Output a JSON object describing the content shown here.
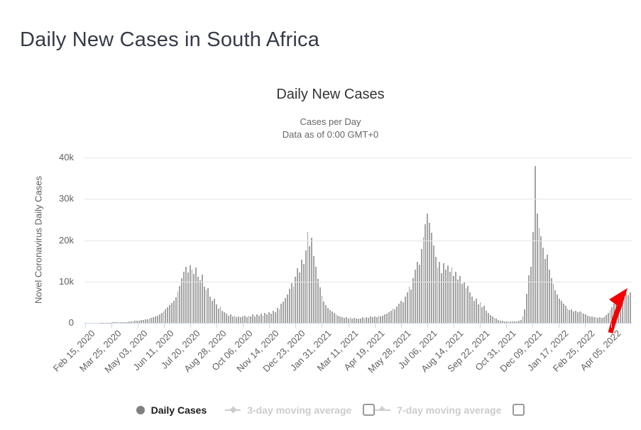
{
  "page": {
    "title": "Daily New Cases in South Africa"
  },
  "chart": {
    "title": "Daily New Cases",
    "subtitle_line1": "Cases per Day",
    "subtitle_line2": "Data as of 0:00 GMT+0",
    "y_axis_title": "Novel Coronavirus Daily Cases"
  },
  "legend": {
    "daily_cases_label": "Daily Cases",
    "ma3_label": "3-day moving average",
    "ma7_label": "7-day moving average"
  },
  "colors": {
    "bar": "#a3a3a3",
    "gridline": "#e6e6e6",
    "axis_line": "#ccd6eb",
    "axis_text": "#606060",
    "heading": "#353b48",
    "legend_daily_marker": "#7f7f7f",
    "legend_muted": "#cccccc",
    "annotation_arrow": "#f40000"
  },
  "chart_data": {
    "type": "bar",
    "title": "Daily New Cases",
    "subtitle": [
      "Cases per Day",
      "Data as of 0:00 GMT+0"
    ],
    "series_name": "Daily Cases",
    "ylabel": "Novel Coronavirus Daily Cases",
    "ylim": [
      0,
      40000
    ],
    "ytick_labels": [
      "0",
      "10k",
      "20k",
      "30k",
      "40k"
    ],
    "grid": true,
    "legend_position": "bottom",
    "x_start_date": "Feb 15, 2020",
    "x_end_date": "May 04, 2022",
    "point_interval_days": 3,
    "x_tick_labels": [
      "Feb 15, 2020",
      "Mar 25, 2020",
      "May 03, 2020",
      "Jun 11, 2020",
      "Jul 20, 2020",
      "Aug 28, 2020",
      "Oct 06, 2020",
      "Nov 14, 2020",
      "Dec 23, 2020",
      "Jan 31, 2021",
      "Mar 11, 2021",
      "Apr 19, 2021",
      "May 28, 2021",
      "Jul 06, 2021",
      "Aug 14, 2021",
      "Sep 22, 2021",
      "Oct 31, 2021",
      "Dec 09, 2021",
      "Jan 17, 2022",
      "Feb 25, 2022",
      "Apr 05, 2022"
    ],
    "values": [
      0,
      0,
      0,
      0,
      0,
      2,
      5,
      10,
      20,
      35,
      50,
      60,
      70,
      80,
      90,
      100,
      120,
      140,
      160,
      190,
      220,
      260,
      300,
      350,
      400,
      450,
      500,
      570,
      640,
      720,
      800,
      900,
      1000,
      1150,
      1300,
      1500,
      1750,
      2050,
      2400,
      2800,
      3300,
      3800,
      4300,
      4800,
      5400,
      6200,
      7500,
      9000,
      10800,
      12300,
      13500,
      12200,
      13900,
      12800,
      11800,
      13400,
      11200,
      10300,
      11600,
      8800,
      7900,
      8400,
      6400,
      5400,
      5900,
      4400,
      3400,
      3900,
      2900,
      2600,
      2200,
      1800,
      2000,
      1500,
      1700,
      1400,
      1600,
      1300,
      1500,
      1700,
      1400,
      1800,
      1500,
      2000,
      1600,
      2100,
      1700,
      2200,
      1800,
      2400,
      2000,
      2600,
      2200,
      3000,
      2600,
      3600,
      3200,
      4600,
      5200,
      6000,
      6800,
      8200,
      9600,
      8800,
      11200,
      13200,
      12200,
      15200,
      14200,
      17500,
      21900,
      18500,
      20600,
      16200,
      13600,
      10600,
      8600,
      6600,
      5200,
      4300,
      3600,
      3100,
      2800,
      2400,
      2100,
      1800,
      1500,
      1300,
      1200,
      1400,
      1100,
      1300,
      1000,
      1200,
      950,
      1100,
      1000,
      1300,
      1100,
      1400,
      1200,
      1500,
      1300,
      1600,
      1400,
      1700,
      1500,
      1800,
      2000,
      2300,
      2600,
      3000,
      3400,
      3200,
      4000,
      4600,
      5400,
      5000,
      6400,
      7400,
      8800,
      8000,
      10800,
      12800,
      14800,
      14000,
      17800,
      20800,
      23800,
      26500,
      24200,
      21800,
      18800,
      16000,
      13400,
      14800,
      12000,
      14400,
      12800,
      13900,
      12400,
      13400,
      11400,
      12400,
      10400,
      11400,
      9400,
      9900,
      8400,
      8900,
      7400,
      6400,
      5400,
      5900,
      4400,
      4900,
      3700,
      4100,
      2900,
      2400,
      1900,
      1600,
      1250,
      950,
      750,
      560,
      460,
      380,
      330,
      290,
      290,
      340,
      300,
      390,
      480,
      700,
      1500,
      3200,
      7000,
      11500,
      13500,
      22000,
      37900,
      26500,
      23000,
      21000,
      18200,
      15400,
      16400,
      12800,
      10800,
      9400,
      7900,
      6900,
      5900,
      5400,
      4700,
      4100,
      3500,
      3100,
      3300,
      2800,
      3000,
      2600,
      2800,
      2500,
      2200,
      2000,
      1800,
      1600,
      1500,
      1350,
      1450,
      1250,
      1350,
      1150,
      1450,
      1850,
      2450,
      3050,
      3850,
      4650,
      5450,
      6450,
      5850,
      6850,
      6250,
      7250,
      6650,
      7400
    ],
    "annotation": {
      "shape": "arrow",
      "color": "#f40000"
    }
  }
}
